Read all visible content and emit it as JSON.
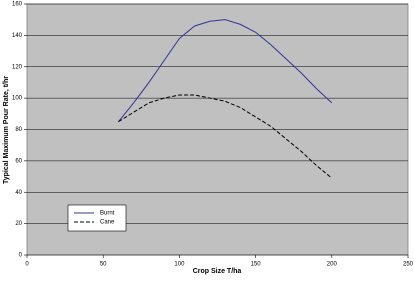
{
  "chart_data": {
    "type": "line",
    "x_label": "Crop Size T/ha",
    "y_label": "Typical Maximum Pour Rate, t/hr",
    "x": [
      60,
      70,
      80,
      90,
      100,
      110,
      120,
      130,
      140,
      150,
      160,
      170,
      180,
      190,
      200
    ],
    "series": [
      {
        "name": "Burnt",
        "color": "#333399",
        "dash": false,
        "values": [
          85,
          97,
          110,
          124,
          138,
          146,
          149,
          150,
          147,
          142,
          134,
          125,
          116,
          106,
          97
        ]
      },
      {
        "name": "Cane",
        "color": "#000000",
        "dash": true,
        "values": [
          85,
          91,
          97,
          100,
          102,
          102,
          100,
          98,
          94,
          88,
          82,
          74,
          66,
          57,
          49
        ]
      }
    ],
    "xlim": [
      0,
      250
    ],
    "xticks": [
      0,
      50,
      100,
      150,
      200,
      250
    ],
    "ylim": [
      0,
      160
    ],
    "yticks": [
      0,
      20,
      40,
      60,
      80,
      100,
      120,
      140,
      160
    ],
    "grid": true,
    "legend": "lower left",
    "plot_color": "#c0c0c0"
  }
}
